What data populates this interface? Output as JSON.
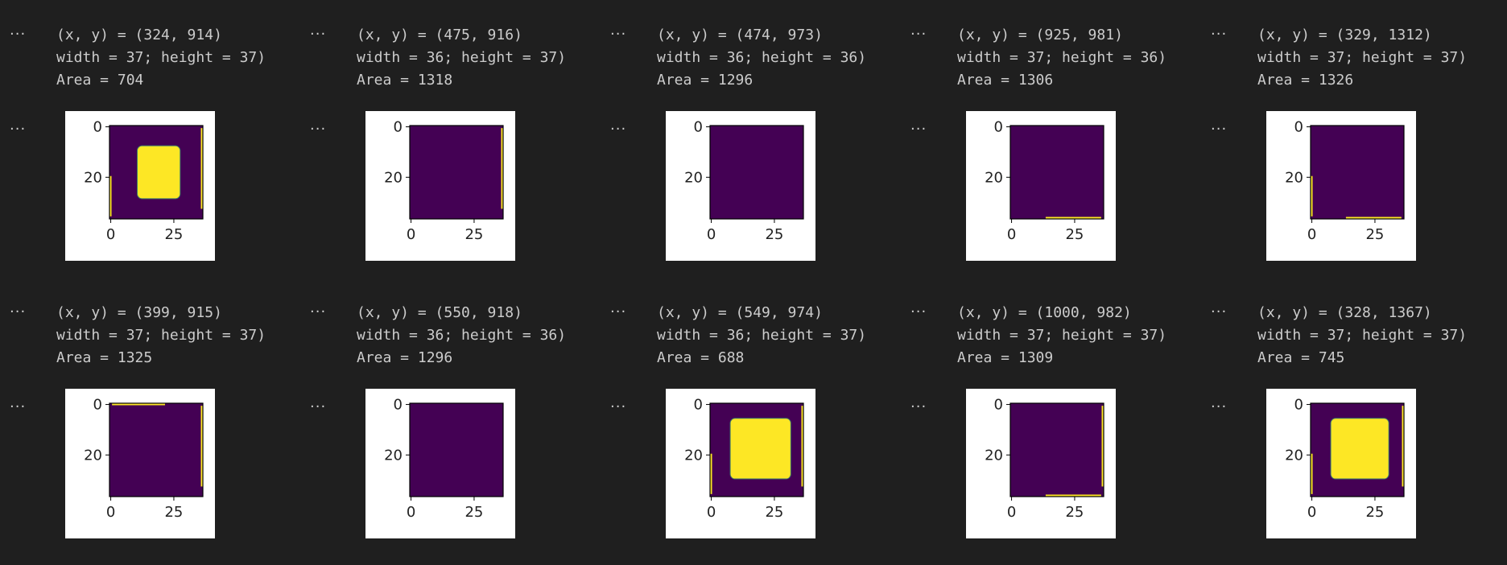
{
  "ellipsis": "···",
  "colors": {
    "background": "#1f1f1f",
    "text": "#cccccc",
    "viridis_low": "#440154",
    "viridis_high": "#fde725",
    "viridis_mid": "#3b7a6a"
  },
  "axis": {
    "y_ticks": [
      "0",
      "20"
    ],
    "x_ticks": [
      "0",
      "25"
    ]
  },
  "cells": [
    {
      "coords": "(x, y) = (324, 914)",
      "dims": "width = 37; height = 37)",
      "area": "Area = 704",
      "blob": true,
      "blob_rect": [
        11,
        8,
        28,
        29
      ],
      "edge": "left-right"
    },
    {
      "coords": "(x, y) = (475, 916)",
      "dims": "width = 36; height = 37)",
      "area": "Area = 1318",
      "blob": false,
      "edge": "right"
    },
    {
      "coords": "(x, y) = (474, 973)",
      "dims": "width = 36; height = 36)",
      "area": "Area = 1296",
      "blob": false,
      "edge": "none"
    },
    {
      "coords": "(x, y) = (925, 981)",
      "dims": "width = 37; height = 36)",
      "area": "Area = 1306",
      "blob": false,
      "edge": "bottom"
    },
    {
      "coords": "(x, y) = (329, 1312)",
      "dims": "width = 37; height = 37)",
      "area": "Area = 1326",
      "blob": false,
      "edge": "left-bottom"
    },
    {
      "coords": "(x, y) = (399, 915)",
      "dims": "width = 37; height = 37)",
      "area": "Area = 1325",
      "blob": false,
      "edge": "top-right"
    },
    {
      "coords": "(x, y) = (550, 918)",
      "dims": "width = 36; height = 36)",
      "area": "Area = 1296",
      "blob": false,
      "edge": "none"
    },
    {
      "coords": "(x, y) = (549, 974)",
      "dims": "width = 36; height = 37)",
      "area": "Area = 688",
      "blob": true,
      "blob_rect": [
        8,
        6,
        32,
        30
      ],
      "edge": "left-right"
    },
    {
      "coords": "(x, y) = (1000, 982)",
      "dims": "width = 37; height = 37)",
      "area": "Area = 1309",
      "blob": false,
      "edge": "bottom-right"
    },
    {
      "coords": "(x, y) = (328, 1367)",
      "dims": "width = 37; height = 37)",
      "area": "Area = 745",
      "blob": true,
      "blob_rect": [
        8,
        6,
        31,
        30
      ],
      "edge": "left-right"
    }
  ]
}
